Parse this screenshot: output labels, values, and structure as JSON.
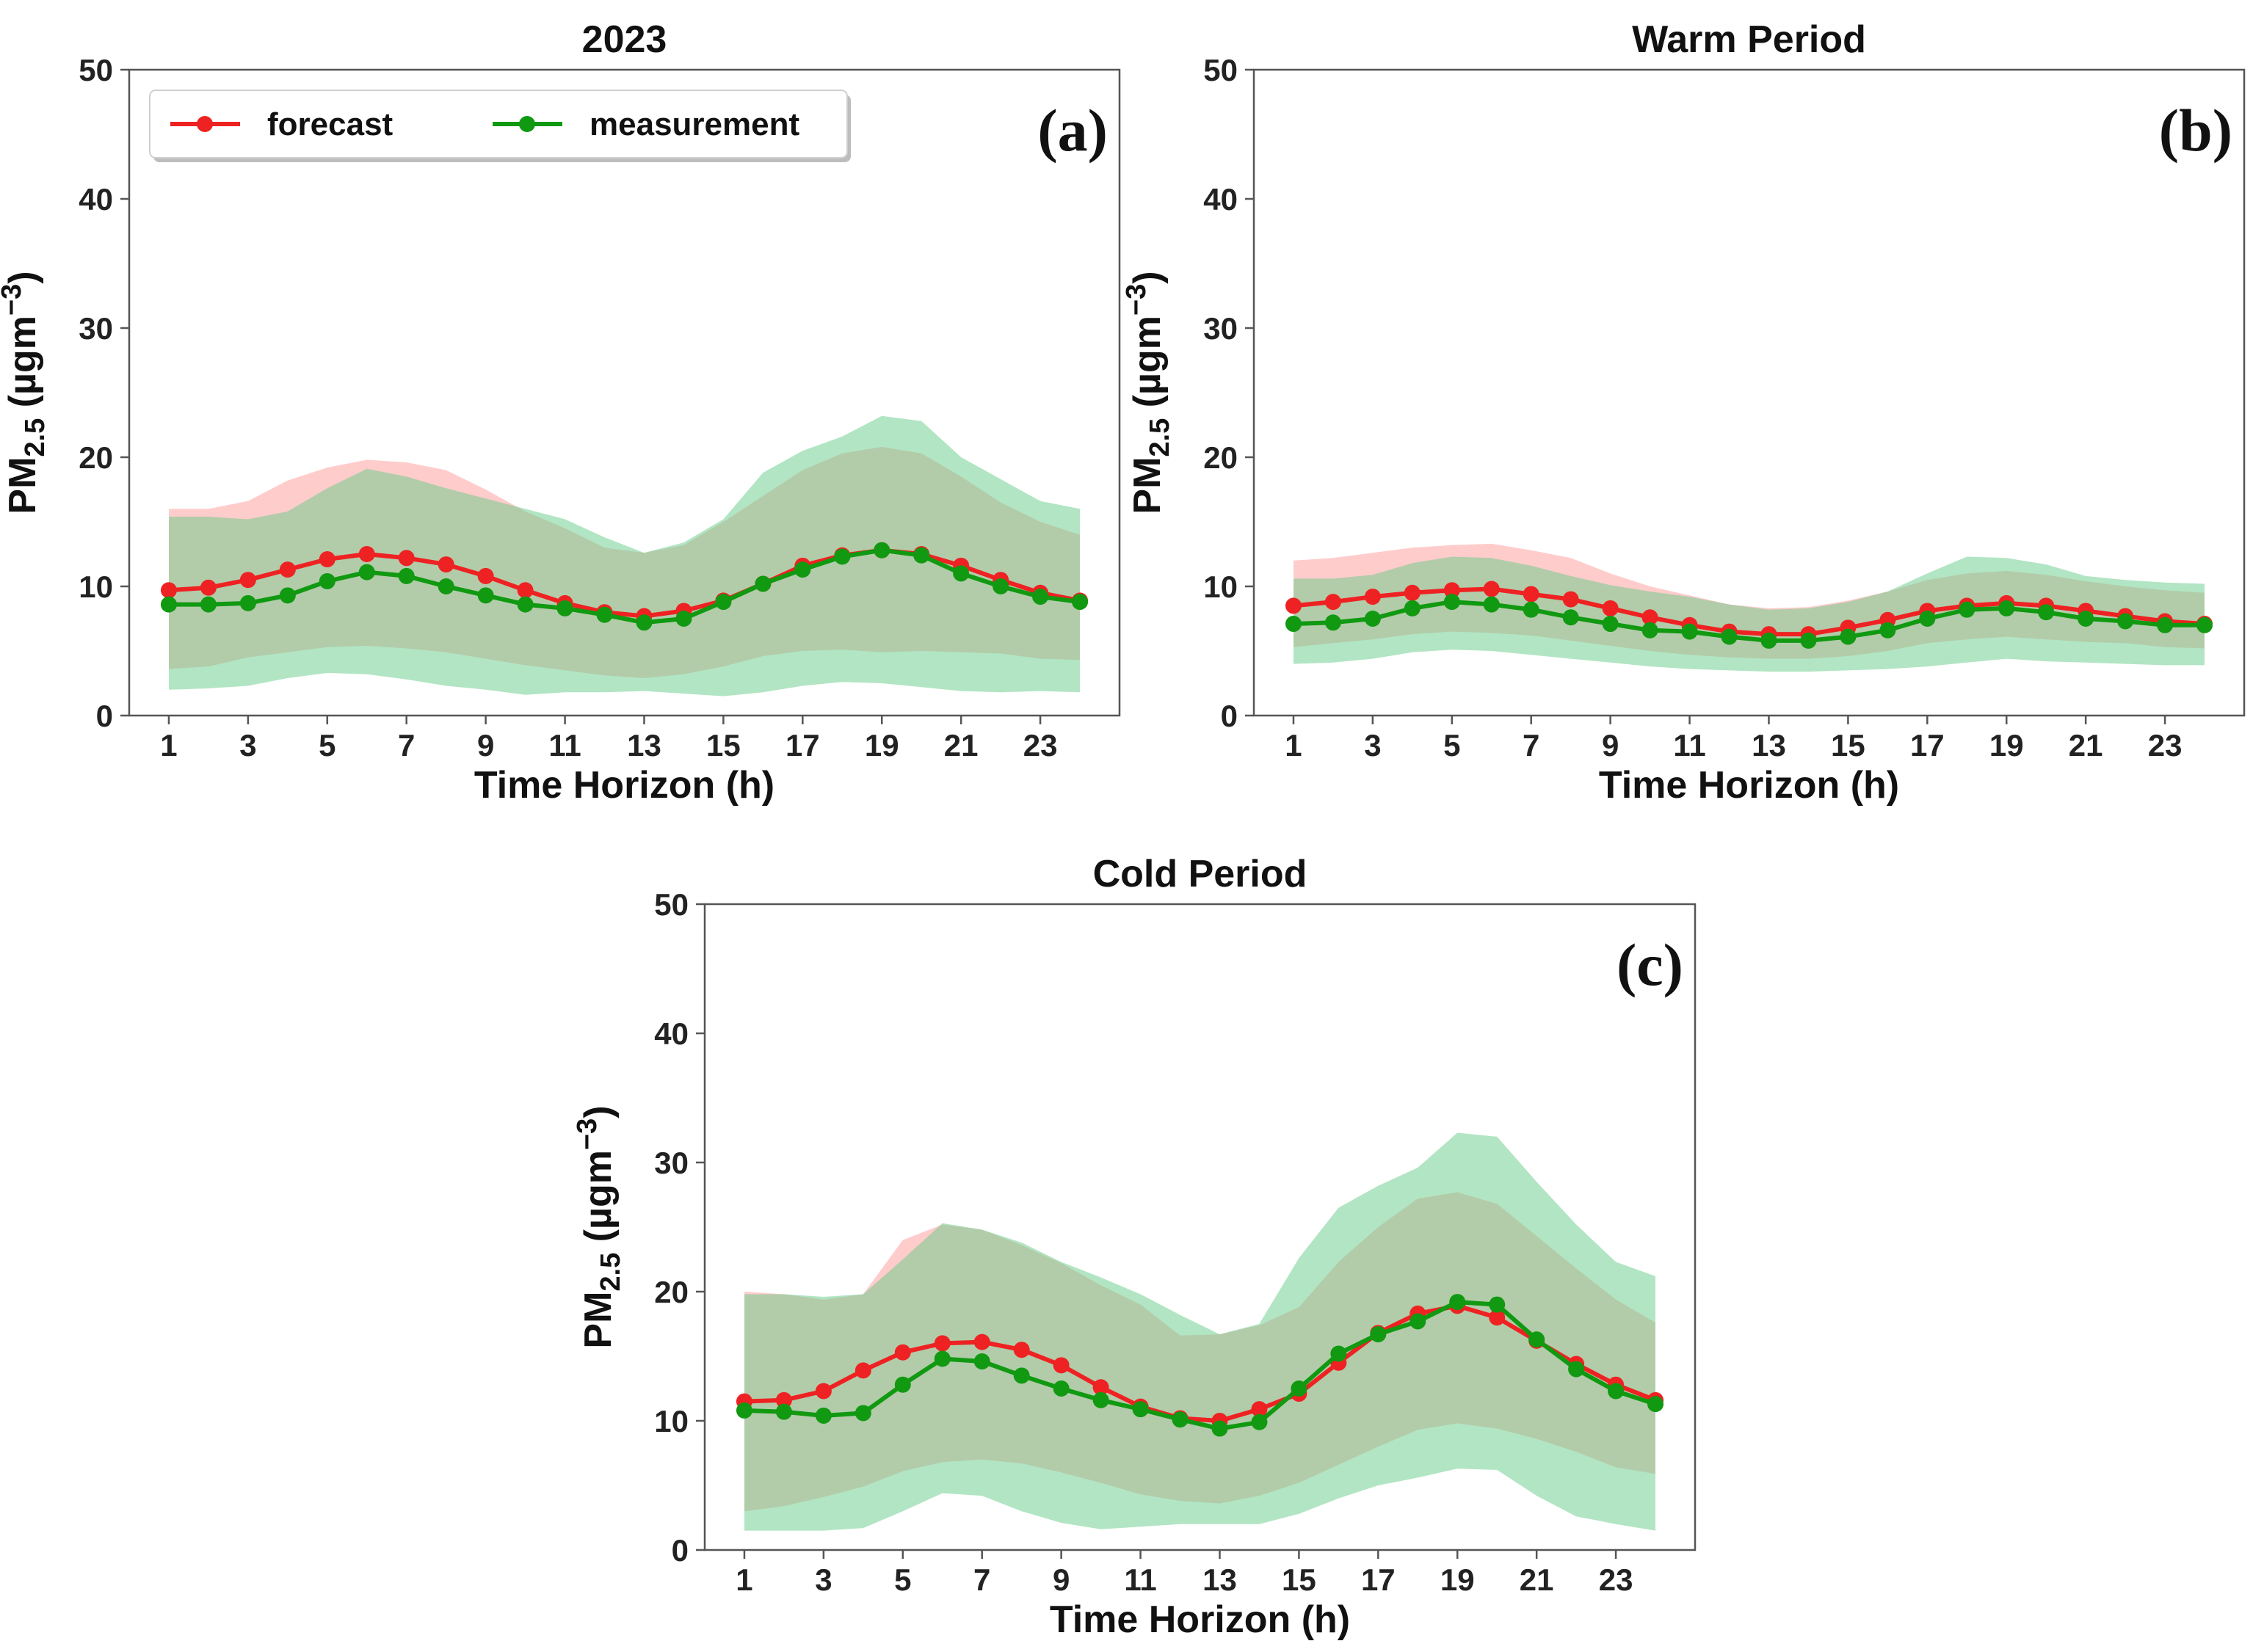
{
  "figure": {
    "colors": {
      "forecast": "#ee2222",
      "measurement": "#119911",
      "forecast_band": "#ff9999",
      "measurement_band": "#66cc88"
    },
    "legend": {
      "forecast_label": "forecast",
      "measurement_label": "measurement"
    }
  },
  "chart_data": [
    {
      "type": "line",
      "title": "2023",
      "panel_label": "(a)",
      "xlabel": "Time Horizon (h)",
      "ylabel": "PM2.5 (µgm−3)",
      "ylim": [
        0,
        50
      ],
      "yticks": [
        0,
        10,
        20,
        30,
        40,
        50
      ],
      "xlim": [
        0,
        25
      ],
      "xticks": [
        1,
        3,
        5,
        7,
        9,
        11,
        13,
        15,
        17,
        19,
        21,
        23
      ],
      "legend": "top-left",
      "x": [
        1,
        2,
        3,
        4,
        5,
        6,
        7,
        8,
        9,
        10,
        11,
        12,
        13,
        14,
        15,
        16,
        17,
        18,
        19,
        20,
        21,
        22,
        23,
        24
      ],
      "series": [
        {
          "name": "forecast",
          "values": [
            9.7,
            9.9,
            10.5,
            11.3,
            12.1,
            12.5,
            12.2,
            11.7,
            10.8,
            9.7,
            8.7,
            8.0,
            7.7,
            8.1,
            8.9,
            10.2,
            11.6,
            12.4,
            12.8,
            12.5,
            11.6,
            10.5,
            9.5,
            8.9
          ],
          "lower": [
            3.6,
            3.8,
            4.5,
            4.9,
            5.3,
            5.4,
            5.2,
            4.9,
            4.4,
            3.9,
            3.5,
            3.1,
            2.9,
            3.2,
            3.8,
            4.6,
            5.0,
            5.1,
            4.9,
            5.0,
            4.9,
            4.8,
            4.4,
            4.3
          ],
          "upper": [
            16.0,
            16.0,
            16.6,
            18.2,
            19.2,
            19.8,
            19.6,
            19.0,
            17.5,
            15.8,
            14.5,
            13.0,
            12.6,
            13.2,
            15.0,
            17.0,
            19.0,
            20.3,
            20.8,
            20.3,
            18.5,
            16.5,
            15.0,
            14.0
          ]
        },
        {
          "name": "measurement",
          "values": [
            8.6,
            8.6,
            8.7,
            9.3,
            10.4,
            11.1,
            10.8,
            10.0,
            9.3,
            8.6,
            8.3,
            7.8,
            7.2,
            7.5,
            8.8,
            10.2,
            11.3,
            12.3,
            12.8,
            12.4,
            11.0,
            10.0,
            9.2,
            8.8
          ],
          "lower": [
            2.0,
            2.1,
            2.3,
            2.9,
            3.3,
            3.2,
            2.8,
            2.3,
            2.0,
            1.6,
            1.8,
            1.8,
            1.9,
            1.7,
            1.5,
            1.8,
            2.3,
            2.6,
            2.5,
            2.2,
            1.9,
            1.8,
            1.9,
            1.8
          ],
          "upper": [
            15.4,
            15.4,
            15.2,
            15.8,
            17.6,
            19.1,
            18.5,
            17.6,
            16.8,
            16.0,
            15.2,
            13.8,
            12.6,
            13.4,
            15.2,
            18.8,
            20.5,
            21.6,
            23.2,
            22.8,
            20.0,
            18.3,
            16.6,
            16.0
          ]
        }
      ]
    },
    {
      "type": "line",
      "title": "Warm Period",
      "panel_label": "(b)",
      "xlabel": "Time Horizon (h)",
      "ylabel": "PM2.5 (µgm−3)",
      "ylim": [
        0,
        50
      ],
      "yticks": [
        0,
        10,
        20,
        30,
        40,
        50
      ],
      "xlim": [
        0,
        25
      ],
      "xticks": [
        1,
        3,
        5,
        7,
        9,
        11,
        13,
        15,
        17,
        19,
        21,
        23
      ],
      "x": [
        1,
        2,
        3,
        4,
        5,
        6,
        7,
        8,
        9,
        10,
        11,
        12,
        13,
        14,
        15,
        16,
        17,
        18,
        19,
        20,
        21,
        22,
        23,
        24
      ],
      "series": [
        {
          "name": "forecast",
          "values": [
            8.5,
            8.8,
            9.2,
            9.5,
            9.7,
            9.8,
            9.4,
            9.0,
            8.3,
            7.6,
            7.0,
            6.5,
            6.3,
            6.3,
            6.8,
            7.4,
            8.1,
            8.5,
            8.7,
            8.5,
            8.1,
            7.7,
            7.3,
            7.1
          ],
          "lower": [
            5.3,
            5.6,
            5.9,
            6.3,
            6.5,
            6.4,
            6.2,
            5.8,
            5.4,
            5.0,
            4.7,
            4.5,
            4.4,
            4.4,
            4.6,
            5.0,
            5.6,
            5.9,
            6.1,
            5.9,
            5.7,
            5.6,
            5.3,
            5.2
          ],
          "upper": [
            12.0,
            12.2,
            12.6,
            13.0,
            13.2,
            13.3,
            12.8,
            12.2,
            11.0,
            10.0,
            9.3,
            8.6,
            8.3,
            8.4,
            8.9,
            9.6,
            10.5,
            11.0,
            11.2,
            10.9,
            10.4,
            10.0,
            9.7,
            9.5
          ]
        },
        {
          "name": "measurement",
          "values": [
            7.1,
            7.2,
            7.5,
            8.3,
            8.8,
            8.6,
            8.2,
            7.6,
            7.1,
            6.6,
            6.5,
            6.1,
            5.8,
            5.8,
            6.1,
            6.6,
            7.5,
            8.2,
            8.3,
            8.0,
            7.5,
            7.3,
            7.0,
            7.0
          ],
          "lower": [
            4.0,
            4.1,
            4.4,
            4.9,
            5.1,
            5.0,
            4.7,
            4.4,
            4.1,
            3.8,
            3.6,
            3.5,
            3.4,
            3.4,
            3.5,
            3.6,
            3.8,
            4.1,
            4.4,
            4.2,
            4.1,
            4.0,
            3.9,
            3.9
          ],
          "upper": [
            10.6,
            10.6,
            10.9,
            11.8,
            12.3,
            12.2,
            11.6,
            10.8,
            10.1,
            9.6,
            9.2,
            8.6,
            8.2,
            8.3,
            8.8,
            9.6,
            11.0,
            12.3,
            12.2,
            11.7,
            10.8,
            10.5,
            10.3,
            10.2
          ]
        }
      ]
    },
    {
      "type": "line",
      "title": "Cold Period",
      "panel_label": "(c)",
      "xlabel": "Time Horizon (h)",
      "ylabel": "PM2.5 (µgm−3)",
      "ylim": [
        0,
        50
      ],
      "yticks": [
        0,
        10,
        20,
        30,
        40,
        50
      ],
      "xlim": [
        0,
        25
      ],
      "xticks": [
        1,
        3,
        5,
        7,
        9,
        11,
        13,
        15,
        17,
        19,
        21,
        23
      ],
      "x": [
        1,
        2,
        3,
        4,
        5,
        6,
        7,
        8,
        9,
        10,
        11,
        12,
        13,
        14,
        15,
        16,
        17,
        18,
        19,
        20,
        21,
        22,
        23,
        24
      ],
      "series": [
        {
          "name": "forecast",
          "values": [
            11.5,
            11.6,
            12.3,
            13.9,
            15.3,
            16.0,
            16.1,
            15.5,
            14.3,
            12.6,
            11.1,
            10.2,
            10.0,
            10.9,
            12.1,
            14.5,
            16.8,
            18.3,
            18.9,
            18.0,
            16.2,
            14.4,
            12.8,
            11.6
          ],
          "lower": [
            3.0,
            3.4,
            4.1,
            4.9,
            6.1,
            6.8,
            7.0,
            6.7,
            6.0,
            5.2,
            4.3,
            3.8,
            3.6,
            4.2,
            5.2,
            6.6,
            8.0,
            9.3,
            9.8,
            9.4,
            8.6,
            7.6,
            6.4,
            5.9
          ],
          "upper": [
            20.0,
            19.8,
            19.4,
            19.8,
            24.0,
            25.2,
            24.8,
            23.6,
            22.2,
            20.5,
            19.0,
            16.6,
            16.7,
            17.4,
            18.8,
            22.3,
            25.0,
            27.2,
            27.7,
            26.8,
            24.3,
            21.8,
            19.4,
            17.6
          ]
        },
        {
          "name": "measurement",
          "values": [
            10.8,
            10.7,
            10.4,
            10.6,
            12.8,
            14.8,
            14.6,
            13.5,
            12.5,
            11.6,
            10.9,
            10.1,
            9.4,
            9.9,
            12.5,
            15.2,
            16.7,
            17.7,
            19.2,
            19.0,
            16.3,
            14.0,
            12.3,
            11.3
          ],
          "lower": [
            1.5,
            1.5,
            1.5,
            1.7,
            3.0,
            4.4,
            4.2,
            3.0,
            2.1,
            1.6,
            1.8,
            2.0,
            2.0,
            2.0,
            2.8,
            4.0,
            5.0,
            5.6,
            6.3,
            6.2,
            4.2,
            2.6,
            2.0,
            1.5
          ],
          "upper": [
            19.8,
            19.8,
            19.6,
            19.8,
            22.5,
            25.3,
            24.8,
            23.8,
            22.3,
            21.1,
            19.8,
            18.2,
            16.7,
            17.5,
            22.6,
            26.5,
            28.2,
            29.6,
            32.3,
            32.0,
            28.5,
            25.2,
            22.3,
            21.2
          ]
        }
      ]
    }
  ]
}
